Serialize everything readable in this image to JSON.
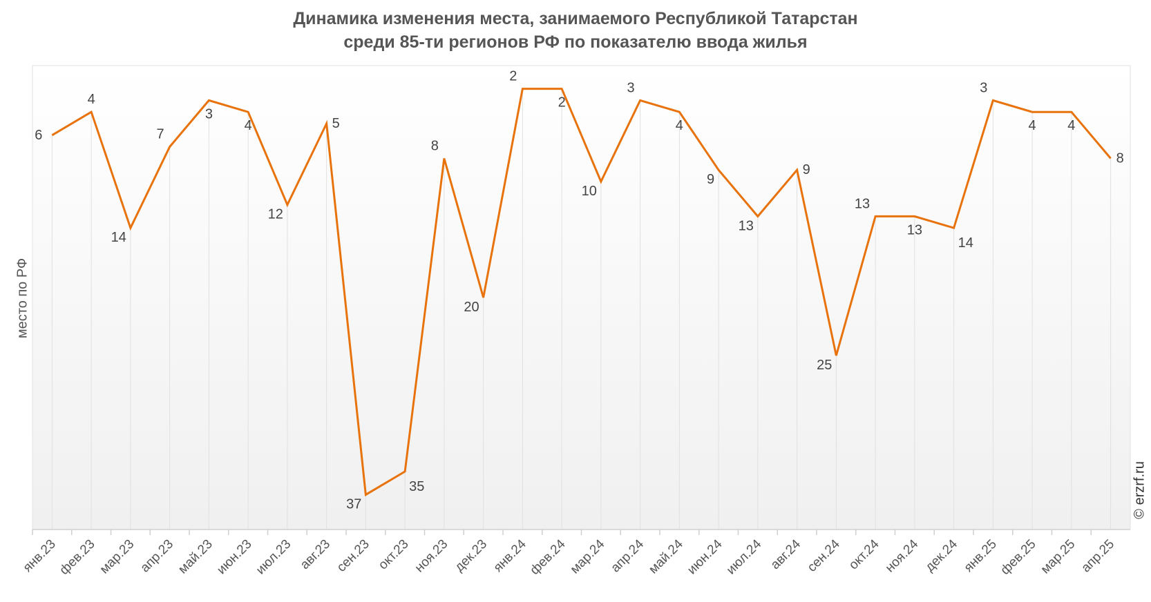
{
  "chart_data": {
    "type": "line",
    "title_line1": "Динамика изменения места, занимаемого Республикой Татарстан",
    "title_line2": "среди 85-ти регионов РФ по показателю ввода жилья",
    "xlabel": "",
    "ylabel": "место по РФ",
    "ylim": [
      40,
      0
    ],
    "y_inverted": true,
    "grid": "vertical drop lines",
    "categories": [
      "янв.23",
      "фев.23",
      "мар.23",
      "апр.23",
      "май.23",
      "июн.23",
      "июл.23",
      "авг.23",
      "сен.23",
      "окт.23",
      "ноя.23",
      "дек.23",
      "янв.24",
      "фев.24",
      "мар.24",
      "апр.24",
      "май.24",
      "июн.24",
      "июл.24",
      "авг.24",
      "сен.24",
      "окт.24",
      "ноя.24",
      "дек.24",
      "янв.25",
      "фев.25",
      "мар.25",
      "апр.25"
    ],
    "series": [
      {
        "name": "место",
        "color": "#E8720C",
        "values": [
          6,
          4,
          14,
          7,
          3,
          4,
          12,
          5,
          37,
          35,
          8,
          20,
          2,
          2,
          10,
          3,
          4,
          9,
          13,
          9,
          25,
          13,
          13,
          14,
          3,
          4,
          4,
          8
        ]
      }
    ],
    "watermark": "© erzrf.ru"
  }
}
